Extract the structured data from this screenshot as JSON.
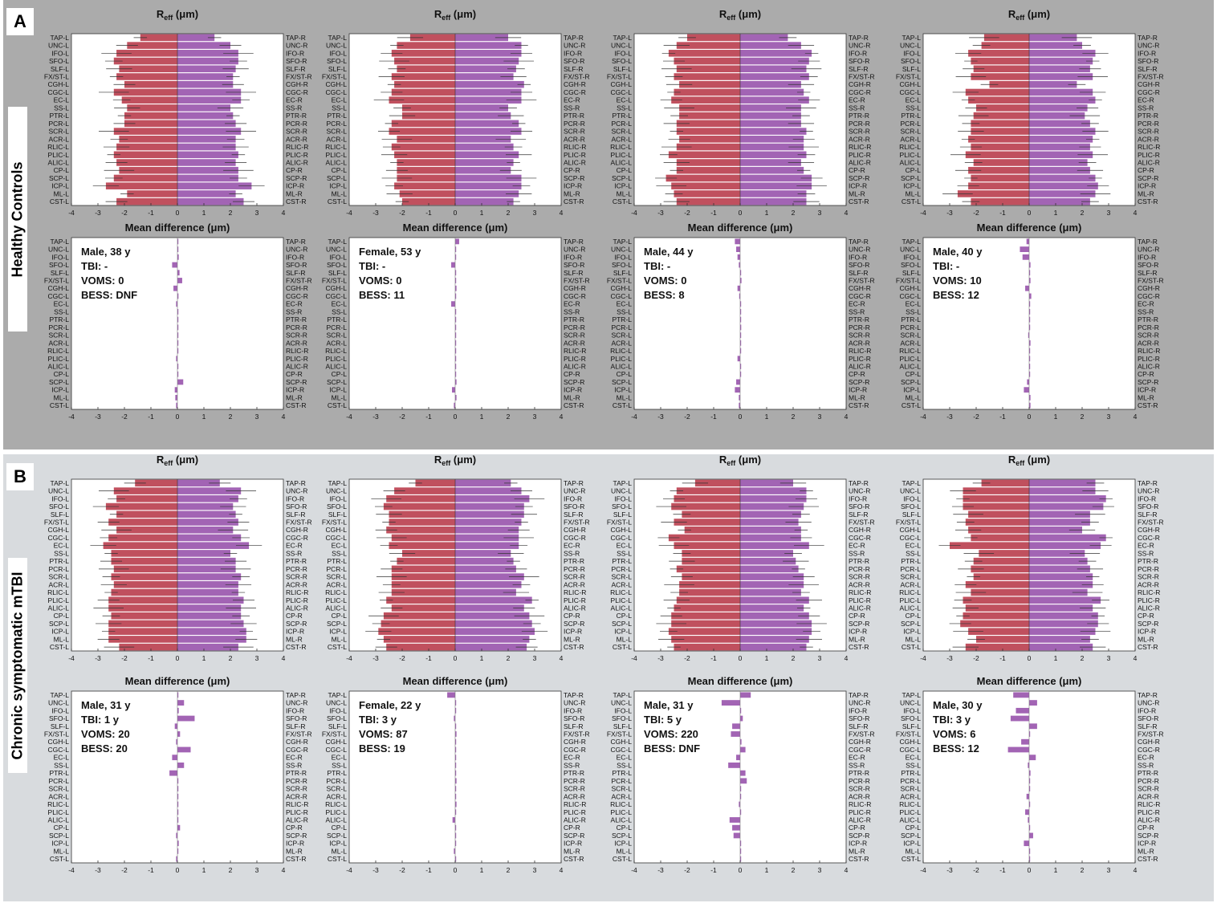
{
  "figure": {
    "sectionA": {
      "letter": "A",
      "row_label": "Healthy Controls"
    },
    "sectionB": {
      "letter": "B",
      "row_label": "Chronic symptomatic mTBI"
    }
  },
  "chart_data": {
    "type": "bar",
    "orientation": "horizontal",
    "tracts_left": [
      "TAP-L",
      "UNC-L",
      "IFO-L",
      "SFO-L",
      "SLF-L",
      "FX/ST-L",
      "CGH-L",
      "CGC-L",
      "EC-L",
      "SS-L",
      "PTR-L",
      "PCR-L",
      "SCR-L",
      "ACR-L",
      "RLIC-L",
      "PLIC-L",
      "ALIC-L",
      "CP-L",
      "SCP-L",
      "ICP-L",
      "ML-L",
      "CST-L"
    ],
    "tracts_right": [
      "TAP-R",
      "UNC-R",
      "IFO-R",
      "SFO-R",
      "SLF-R",
      "FX/ST-R",
      "CGH-R",
      "CGC-R",
      "EC-R",
      "SS-R",
      "PTR-R",
      "PCR-R",
      "SCR-R",
      "ACR-R",
      "RLIC-R",
      "PLIC-R",
      "ALIC-R",
      "CP-R",
      "SCP-R",
      "ICP-R",
      "ML-R",
      "CST-R"
    ],
    "xlim": [
      -4,
      4
    ],
    "xticks": [
      -4,
      -3,
      -2,
      -1,
      0,
      1,
      2,
      3,
      4
    ],
    "reff_title": "R_eff (μm)",
    "reff_title_main": "R",
    "reff_title_sub": "eff",
    "reff_title_unit": " (μm)",
    "diff_title": "Mean difference (μm)",
    "colors": {
      "left": "#c0505e",
      "right": "#a264b4"
    },
    "subjects": [
      {
        "group": "Healthy Controls",
        "info": [
          "Male, 38 y",
          "TBI: -",
          "VOMS: 0",
          "BESS: DNF"
        ],
        "reff_left": [
          1.4,
          1.9,
          2.3,
          2.4,
          2.2,
          2.3,
          2.0,
          2.4,
          2.1,
          1.9,
          2.0,
          2.0,
          2.4,
          2.2,
          2.3,
          2.4,
          2.3,
          2.2,
          2.4,
          2.7,
          1.9,
          2.3
        ],
        "reff_right": [
          1.4,
          2.0,
          2.3,
          2.3,
          2.2,
          2.1,
          2.1,
          2.4,
          2.4,
          2.0,
          2.1,
          2.2,
          2.4,
          2.2,
          2.2,
          2.3,
          2.2,
          2.3,
          2.3,
          2.8,
          2.2,
          2.5
        ],
        "diff": [
          0,
          0,
          0.05,
          -0.2,
          0.08,
          0.18,
          -0.15,
          0.04,
          -0.05,
          0,
          0,
          0,
          0,
          0,
          0,
          -0.05,
          0,
          0,
          0.22,
          -0.1,
          -0.08,
          -0.05
        ]
      },
      {
        "group": "Healthy Controls",
        "info": [
          "Female, 53 y",
          "TBI: -",
          "VOMS: 0",
          "BESS: 11"
        ],
        "reff_left": [
          1.7,
          2.2,
          2.4,
          2.3,
          2.2,
          2.4,
          2.3,
          2.4,
          2.5,
          2.0,
          2.0,
          2.4,
          2.5,
          2.2,
          2.4,
          2.3,
          2.2,
          2.2,
          2.2,
          2.3,
          2.1,
          2.0
        ],
        "reff_right": [
          2.0,
          2.5,
          2.5,
          2.4,
          2.3,
          2.2,
          2.6,
          2.5,
          2.5,
          2.0,
          2.1,
          2.4,
          2.5,
          2.1,
          2.2,
          2.4,
          2.2,
          2.1,
          2.5,
          2.5,
          2.4,
          2.2
        ],
        "diff": [
          0.15,
          0,
          0,
          -0.15,
          0,
          0,
          0.05,
          0,
          -0.15,
          0,
          0,
          0,
          0,
          0,
          0,
          0,
          0,
          0,
          0.05,
          -0.12,
          0.05,
          -0.05
        ]
      },
      {
        "group": "Healthy Controls",
        "info": [
          "Male, 44 y",
          "TBI: -",
          "VOMS: 0",
          "BESS: 8"
        ],
        "reff_left": [
          2.0,
          2.4,
          2.7,
          2.5,
          2.4,
          2.5,
          2.3,
          2.5,
          2.6,
          2.3,
          2.3,
          2.4,
          2.4,
          2.3,
          2.4,
          2.7,
          2.4,
          2.4,
          2.8,
          2.6,
          2.5,
          2.4
        ],
        "reff_right": [
          1.8,
          2.3,
          2.7,
          2.6,
          2.5,
          2.6,
          2.3,
          2.4,
          2.6,
          2.3,
          2.3,
          2.3,
          2.5,
          2.4,
          2.4,
          2.5,
          2.3,
          2.4,
          2.7,
          2.7,
          2.5,
          2.5
        ],
        "diff": [
          -0.2,
          -0.15,
          -0.1,
          -0.05,
          0,
          0.05,
          -0.1,
          -0.02,
          0,
          0,
          0,
          0.04,
          0,
          0.03,
          0,
          -0.1,
          0,
          0,
          -0.15,
          -0.2,
          -0.05,
          -0.05
        ]
      },
      {
        "group": "Healthy Controls",
        "info": [
          "Male, 40 y",
          "TBI: -",
          "VOMS: 10",
          "BESS: 12"
        ],
        "reff_left": [
          1.7,
          1.8,
          2.3,
          2.2,
          2.1,
          2.2,
          1.5,
          2.4,
          2.3,
          2.0,
          2.1,
          2.2,
          2.2,
          2.3,
          2.2,
          2.4,
          2.1,
          2.3,
          2.2,
          2.3,
          2.7,
          2.2
        ],
        "reff_right": [
          1.8,
          2.0,
          2.5,
          2.4,
          2.3,
          2.4,
          1.8,
          2.4,
          2.5,
          2.2,
          2.1,
          2.3,
          2.5,
          2.4,
          2.3,
          2.4,
          2.2,
          2.3,
          2.5,
          2.6,
          2.5,
          2.3
        ],
        "diff": [
          -0.1,
          -0.35,
          -0.25,
          0.05,
          0,
          0.05,
          -0.15,
          0.08,
          0,
          0,
          0,
          0,
          -0.02,
          0.05,
          0,
          0,
          0,
          0,
          -0.08,
          -0.2,
          0.05,
          0.05
        ]
      },
      {
        "group": "Chronic symptomatic mTBI",
        "info": [
          "Male, 31 y",
          "TBI: 1 y",
          "VOMS: 20",
          "BESS: 20"
        ],
        "reff_left": [
          1.6,
          2.4,
          2.3,
          2.7,
          2.3,
          2.6,
          2.3,
          2.6,
          2.8,
          2.5,
          2.5,
          2.4,
          2.5,
          2.4,
          2.5,
          2.6,
          2.6,
          2.5,
          2.6,
          2.6,
          2.6,
          2.2
        ],
        "reff_right": [
          1.6,
          2.4,
          2.3,
          2.1,
          2.2,
          2.3,
          2.1,
          2.4,
          2.7,
          2.0,
          2.2,
          2.2,
          2.4,
          2.3,
          2.3,
          2.5,
          2.4,
          2.4,
          2.5,
          2.6,
          2.6,
          2.3
        ],
        "diff": [
          0.02,
          0.25,
          0.05,
          0.65,
          -0.1,
          0.1,
          -0.05,
          0.5,
          -0.2,
          0.25,
          -0.3,
          0,
          0,
          0,
          0,
          0,
          0,
          0.1,
          -0.05,
          0.05,
          0,
          -0.05
        ]
      },
      {
        "group": "Chronic symptomatic mTBI",
        "info": [
          "Female, 22 y",
          "TBI: 3 y",
          "VOMS: 87",
          "BESS: 19"
        ],
        "reff_left": [
          1.5,
          2.3,
          2.6,
          2.7,
          2.5,
          2.5,
          2.6,
          2.4,
          2.5,
          2.0,
          2.2,
          2.4,
          2.4,
          2.4,
          2.4,
          2.6,
          2.4,
          2.7,
          2.8,
          2.9,
          2.7,
          2.6
        ],
        "reff_right": [
          2.1,
          2.5,
          2.8,
          2.6,
          2.6,
          2.5,
          2.4,
          2.4,
          2.4,
          2.1,
          2.2,
          2.3,
          2.6,
          2.5,
          2.3,
          2.9,
          2.6,
          2.8,
          2.9,
          3.0,
          2.8,
          2.7
        ],
        "diff": [
          -0.3,
          0,
          0,
          -0.05,
          0,
          0.05,
          0,
          0,
          0,
          0,
          0,
          0.05,
          0,
          0,
          0.05,
          0,
          -0.1,
          0,
          0,
          0,
          -0.05,
          0
        ]
      },
      {
        "group": "Chronic symptomatic mTBI",
        "info": [
          "Male, 31 y",
          "TBI: 5 y",
          "VOMS: 220",
          "BESS: DNF"
        ],
        "reff_left": [
          1.7,
          2.4,
          2.5,
          2.6,
          2.2,
          2.5,
          2.1,
          2.7,
          2.5,
          2.2,
          2.2,
          2.4,
          2.2,
          2.3,
          2.3,
          2.4,
          2.5,
          2.6,
          2.6,
          2.7,
          2.6,
          2.5
        ],
        "reff_right": [
          2.0,
          2.5,
          2.5,
          2.4,
          2.3,
          2.2,
          2.3,
          2.3,
          2.6,
          2.0,
          2.1,
          2.2,
          2.4,
          2.4,
          2.3,
          2.6,
          2.4,
          2.6,
          2.7,
          2.7,
          2.6,
          2.5
        ],
        "diff": [
          0.4,
          -0.7,
          0,
          0.1,
          -0.3,
          -0.35,
          0.05,
          0.2,
          -0.15,
          -0.45,
          0.2,
          0.25,
          0,
          0,
          -0.05,
          0,
          -0.4,
          -0.3,
          -0.25,
          0,
          0,
          0
        ]
      },
      {
        "group": "Chronic symptomatic mTBI",
        "info": [
          "Male, 30 y",
          "TBI: 3 y",
          "VOMS: 6",
          "BESS: 12"
        ],
        "reff_left": [
          1.8,
          2.5,
          2.5,
          2.5,
          2.3,
          2.4,
          2.3,
          2.2,
          3.0,
          1.9,
          2.1,
          2.2,
          2.1,
          2.4,
          2.2,
          2.5,
          2.4,
          2.5,
          2.6,
          2.3,
          2.0,
          2.4
        ],
        "reff_right": [
          2.5,
          2.5,
          2.9,
          2.8,
          2.3,
          2.3,
          2.0,
          2.9,
          2.7,
          2.1,
          2.2,
          2.3,
          2.4,
          2.4,
          2.2,
          2.7,
          2.4,
          2.6,
          2.6,
          2.5,
          2.3,
          2.4
        ],
        "diff": [
          -0.6,
          0.3,
          -0.5,
          -0.7,
          0.3,
          0,
          -0.3,
          -0.8,
          0.25,
          -0.05,
          0.05,
          0,
          0,
          -0.1,
          0,
          -0.15,
          -0.05,
          0,
          0.15,
          -0.2,
          0,
          0
        ]
      }
    ]
  }
}
